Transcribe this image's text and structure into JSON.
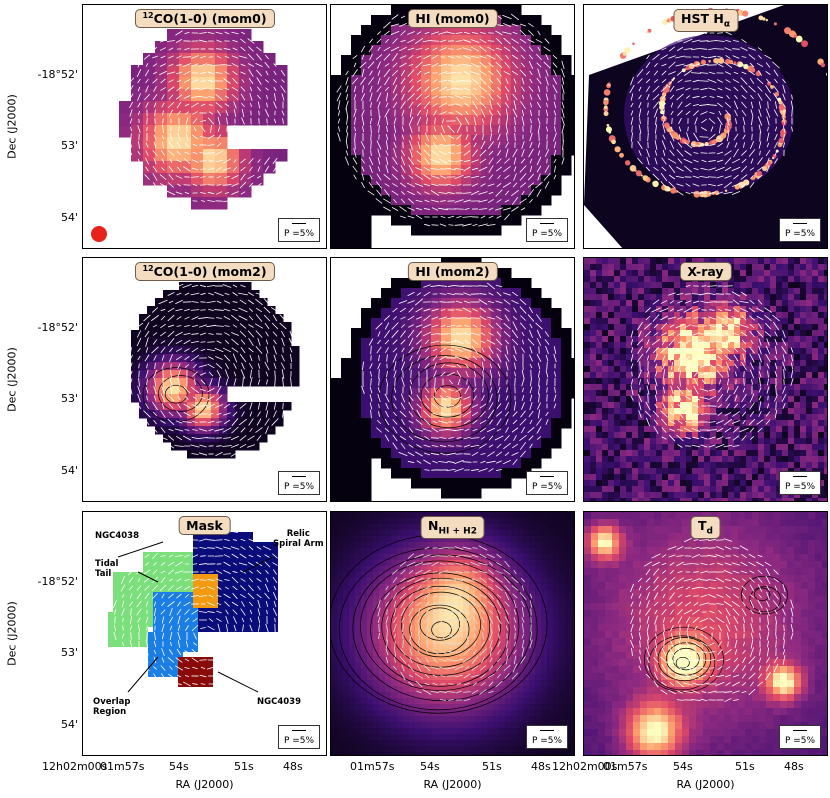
{
  "panels": [
    {
      "title_main": "CO(1-0) (mom0)",
      "title_sup": "12",
      "scale_label": "P =5%"
    },
    {
      "title_main": "HI (mom0)",
      "scale_label": "P =5%"
    },
    {
      "title_main": "HST H",
      "title_sub": "α",
      "scale_label": "P =5%"
    },
    {
      "title_main": "CO(1-0) (mom2)",
      "title_sup": "12",
      "scale_label": "P =5%"
    },
    {
      "title_main": "HI (mom2)",
      "scale_label": "P =5%"
    },
    {
      "title_main": "X-ray",
      "scale_label": "P =5%"
    },
    {
      "title_main": "Mask",
      "scale_label": "P =5%"
    },
    {
      "title_main": "N",
      "title_sub": "HI + H2",
      "scale_label": "P =5%"
    },
    {
      "title_main": "T",
      "title_sub": "d",
      "scale_label": "P =5%"
    }
  ],
  "axes": {
    "y_label": "Dec (J2000)",
    "x_label": "RA (J2000)",
    "y_ticks": [
      "-18°52'",
      "53'",
      "54'"
    ],
    "x_ticks": [
      "12h02m00s",
      "01m57s",
      "54s",
      "51s",
      "48s"
    ]
  },
  "mask_labels": {
    "ngc4038": "NGC4038",
    "relic": "Relic\nSpiral Arm",
    "tidal": "Tidal\nTail",
    "overlap": "Overlap\nRegion",
    "ngc4039": "NGC4039"
  },
  "colors": {
    "title_bg": "#f3dcbf",
    "beam": "#e8221a",
    "mask_green": "#7be07b",
    "mask_blue": "#1a7ee6",
    "mask_navy": "#0a0c7a",
    "mask_orange": "#f39a10",
    "mask_red": "#8a0a0a"
  }
}
